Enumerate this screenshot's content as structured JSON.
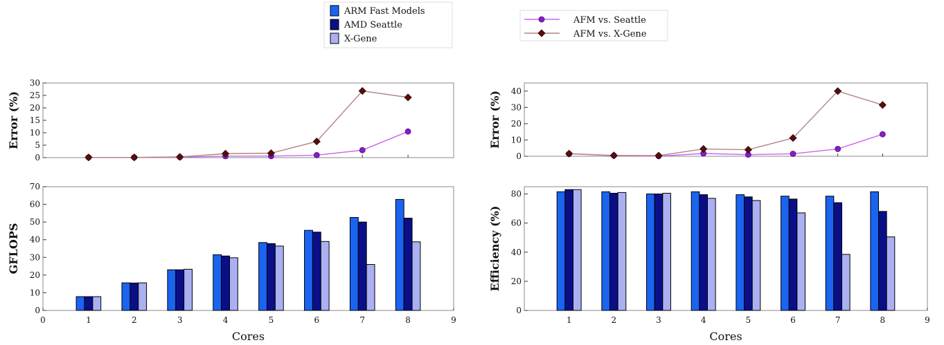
{
  "legend_bars": [
    "ARM Fast Models",
    "AMD Seattle",
    "X-Gene"
  ],
  "legend_lines": [
    "AFM vs. Seattle",
    "AFM vs. X-Gene"
  ],
  "colors": {
    "arm": "#1a64f0",
    "seattle": "#0a0f88",
    "xgene": "#aab0f2",
    "line_seattle": "#c866ee",
    "line_xgene": "#b48484",
    "marker_seattle": "#8a1cc8",
    "marker_xgene": "#5a0d0d"
  },
  "chart_data": [
    {
      "id": "left-error",
      "type": "line",
      "ylabel": "Error (%)",
      "xlabel": "",
      "xlim": [
        0,
        9
      ],
      "ylim": [
        0,
        30
      ],
      "yticks": [
        0,
        5,
        10,
        15,
        20,
        25,
        30
      ],
      "x": [
        1,
        2,
        3,
        4,
        5,
        6,
        7,
        8
      ],
      "series": [
        {
          "name": "AFM vs. Seattle",
          "values": [
            0.1,
            0.1,
            0.2,
            0.6,
            0.6,
            1.0,
            3.0,
            10.5
          ]
        },
        {
          "name": "AFM vs. X-Gene",
          "values": [
            0.1,
            0.1,
            0.3,
            1.6,
            1.8,
            6.5,
            26.8,
            24.2
          ]
        }
      ]
    },
    {
      "id": "left-gflops",
      "type": "bar",
      "ylabel": "GFLOPS",
      "xlabel": "Cores",
      "xlim": [
        0,
        9
      ],
      "xticks": [
        0,
        1,
        2,
        3,
        4,
        5,
        6,
        7,
        8,
        9
      ],
      "ylim": [
        0,
        70
      ],
      "yticks": [
        0,
        10,
        20,
        30,
        40,
        50,
        60,
        70
      ],
      "categories": [
        1,
        2,
        3,
        4,
        5,
        6,
        7,
        8
      ],
      "series": [
        {
          "name": "ARM Fast Models",
          "values": [
            7.8,
            15.6,
            23.0,
            31.5,
            38.4,
            45.3,
            52.6,
            62.8
          ]
        },
        {
          "name": "AMD Seattle",
          "values": [
            7.8,
            15.5,
            23.0,
            30.8,
            37.8,
            44.3,
            50.0,
            52.2
          ]
        },
        {
          "name": "X-Gene",
          "values": [
            7.8,
            15.6,
            23.3,
            29.8,
            36.4,
            39.0,
            26.0,
            38.8
          ]
        }
      ]
    },
    {
      "id": "right-error",
      "type": "line",
      "ylabel": "Error (%)",
      "xlabel": "",
      "xlim": [
        0,
        9
      ],
      "ylim": [
        0,
        45
      ],
      "yticks": [
        0,
        10,
        20,
        30,
        40
      ],
      "x": [
        1,
        2,
        3,
        4,
        5,
        6,
        7,
        8
      ],
      "series": [
        {
          "name": "AFM vs. Seattle",
          "values": [
            1.5,
            0.4,
            0.1,
            1.7,
            1.0,
            1.5,
            4.5,
            13.5
          ]
        },
        {
          "name": "AFM vs. X-Gene",
          "values": [
            1.6,
            0.5,
            0.4,
            4.5,
            4.0,
            11.2,
            40.0,
            31.5
          ]
        }
      ]
    },
    {
      "id": "right-efficiency",
      "type": "bar",
      "ylabel": "Efficiency (%)",
      "xlabel": "Cores",
      "xlim": [
        0,
        9
      ],
      "xticks": [
        1,
        2,
        3,
        4,
        5,
        6,
        7,
        8,
        9
      ],
      "ylim": [
        0,
        85
      ],
      "yticks": [
        0,
        20,
        40,
        60,
        80
      ],
      "categories": [
        1,
        2,
        3,
        4,
        5,
        6,
        7,
        8
      ],
      "series": [
        {
          "name": "ARM Fast Models",
          "values": [
            81.5,
            81.5,
            80.0,
            81.5,
            79.5,
            78.5,
            78.5,
            81.5
          ]
        },
        {
          "name": "AMD Seattle",
          "values": [
            83.0,
            80.5,
            80.0,
            79.5,
            78.0,
            76.5,
            74.0,
            68.0
          ]
        },
        {
          "name": "X-Gene",
          "values": [
            83.0,
            81.0,
            80.5,
            77.0,
            75.5,
            67.0,
            38.5,
            50.5
          ]
        }
      ]
    }
  ]
}
